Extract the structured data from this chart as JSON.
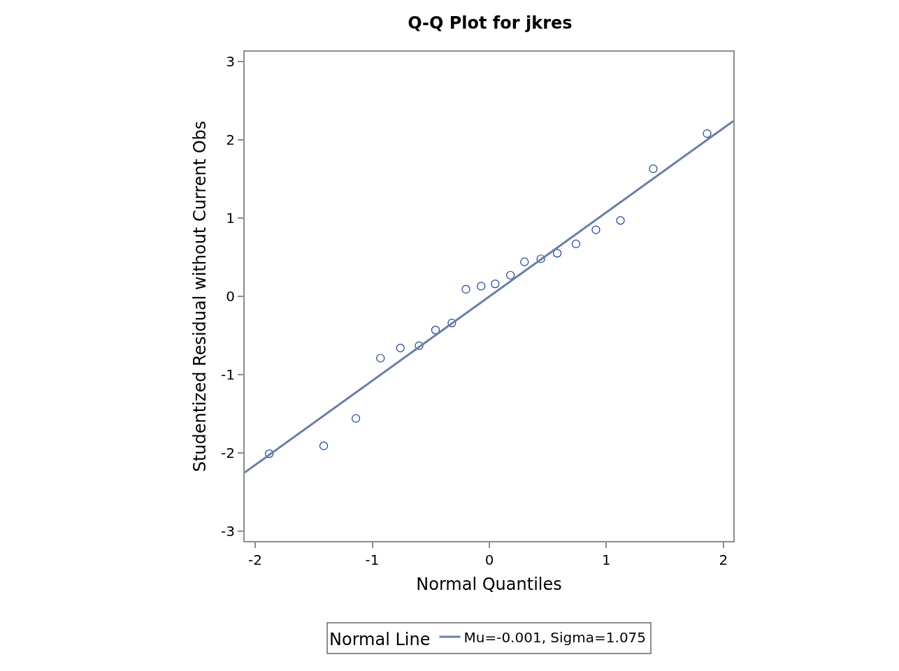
{
  "chart_data": {
    "type": "scatter",
    "title": "Q-Q Plot for jkres",
    "xlabel": "Normal Quantiles",
    "ylabel": "Studentized Residual without Current Obs",
    "legend_title": "Normal Line",
    "legend": "bottom",
    "marker": "circle",
    "xlim": [
      -2.09,
      2.084
    ],
    "xticks": [
      -2,
      -1,
      0,
      1,
      2
    ],
    "ylim": [
      -3.125,
      3.125
    ],
    "yticks": [
      -3,
      -2,
      -1,
      0,
      1,
      2,
      3
    ],
    "x": [
      -1.88,
      -1.415,
      -1.14,
      -0.93,
      -0.76,
      -0.6,
      -0.46,
      -0.32,
      -0.2,
      -0.07,
      0.05,
      0.18,
      0.3,
      0.44,
      0.58,
      0.74,
      0.91,
      1.12,
      1.4,
      1.86
    ],
    "series": [
      {
        "color": "#1a3a9c",
        "values": [
          -2.01,
          -1.91,
          -1.56,
          -0.79,
          -0.66,
          -0.63,
          -0.43,
          -0.34,
          0.09,
          0.13,
          0.16,
          0.27,
          0.44,
          0.48,
          0.55,
          0.67,
          0.85,
          0.97,
          1.63,
          2.08
        ]
      },
      {
        "type": "line",
        "name": "Mu=-0.001, Sigma=1.075",
        "color": "#6a7fa8",
        "marker": "none",
        "line_style": "solid",
        "x": [
          -2.09,
          2.084
        ],
        "values": [
          -2.25,
          2.24
        ]
      }
    ]
  }
}
